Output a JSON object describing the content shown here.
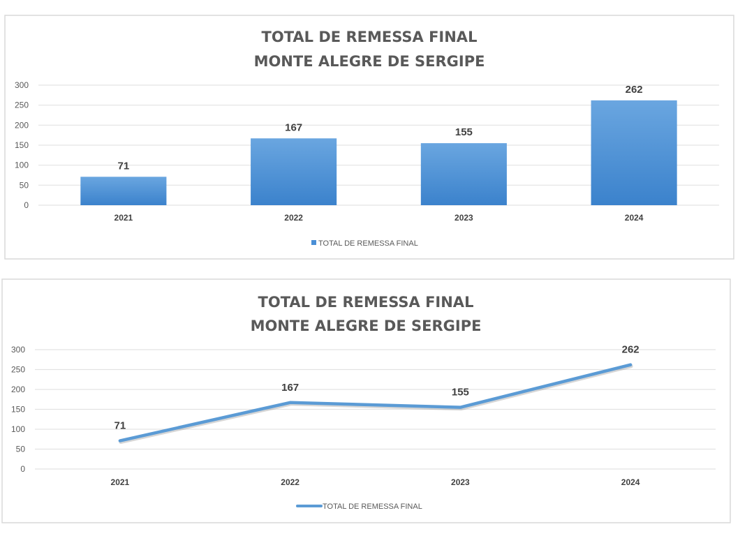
{
  "chart_data": [
    {
      "type": "bar",
      "title": [
        "TOTAL DE REMESSA FINAL",
        "MONTE ALEGRE DE SERGIPE"
      ],
      "categories": [
        "2021",
        "2022",
        "2023",
        "2024"
      ],
      "series": [
        {
          "name": "TOTAL DE REMESSA FINAL",
          "values": [
            71,
            167,
            155,
            262
          ]
        }
      ],
      "data_labels": [
        "71",
        "167",
        "155",
        "262"
      ],
      "yticks": [
        "0",
        "50",
        "100",
        "150",
        "200",
        "250",
        "300"
      ],
      "ylim": [
        0,
        300
      ],
      "grid": true,
      "legend": "bottom",
      "color": "#4a8fd6",
      "xlabel": "",
      "ylabel": ""
    },
    {
      "type": "line",
      "title": [
        "TOTAL DE REMESSA FINAL",
        "MONTE ALEGRE DE SERGIPE"
      ],
      "categories": [
        "2021",
        "2022",
        "2023",
        "2024"
      ],
      "series": [
        {
          "name": "TOTAL DE REMESSA FINAL",
          "values": [
            71,
            167,
            155,
            262
          ]
        }
      ],
      "data_labels": [
        "71",
        "167",
        "155",
        "262"
      ],
      "yticks": [
        "0",
        "50",
        "100",
        "150",
        "200",
        "250",
        "300"
      ],
      "ylim": [
        0,
        300
      ],
      "grid": true,
      "legend": "bottom",
      "color": "#5b9bd5",
      "xlabel": "",
      "ylabel": ""
    }
  ]
}
